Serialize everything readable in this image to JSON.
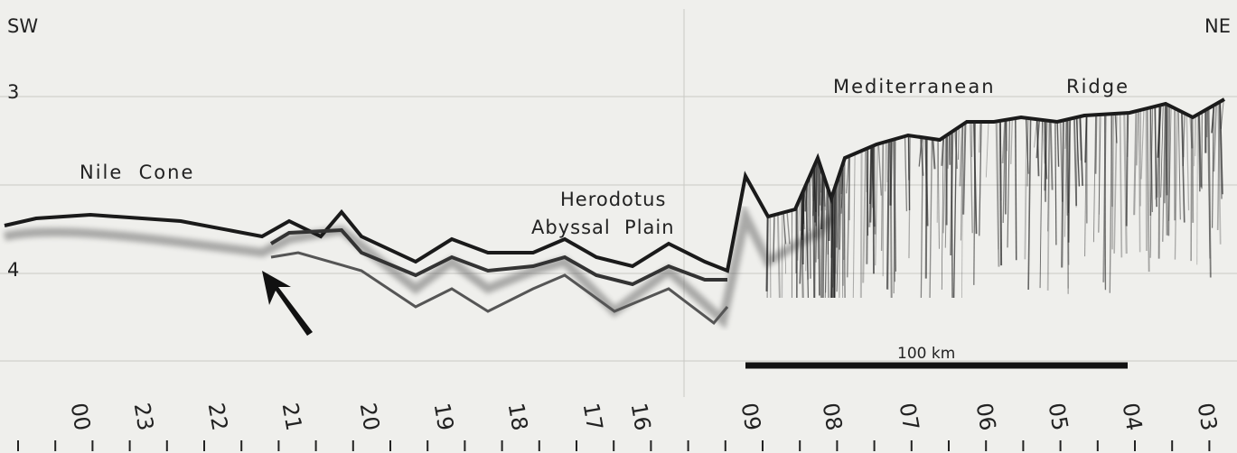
{
  "header": {
    "left": "SW",
    "right": "NE"
  },
  "depth_labels": [
    "3",
    "4"
  ],
  "annotations": {
    "ridge_1": "Mediterranean",
    "ridge_2": "Ridge",
    "cone": "Nile  Cone",
    "plain_1": "Herodotus",
    "plain_2": "Abyssal  Plain"
  },
  "scale_bar": "100 km",
  "time_labels": [
    "00",
    "23",
    "22",
    "21",
    "20",
    "19",
    "18",
    "17",
    "16",
    "09",
    "08",
    "07",
    "06",
    "05",
    "04",
    "03"
  ]
}
